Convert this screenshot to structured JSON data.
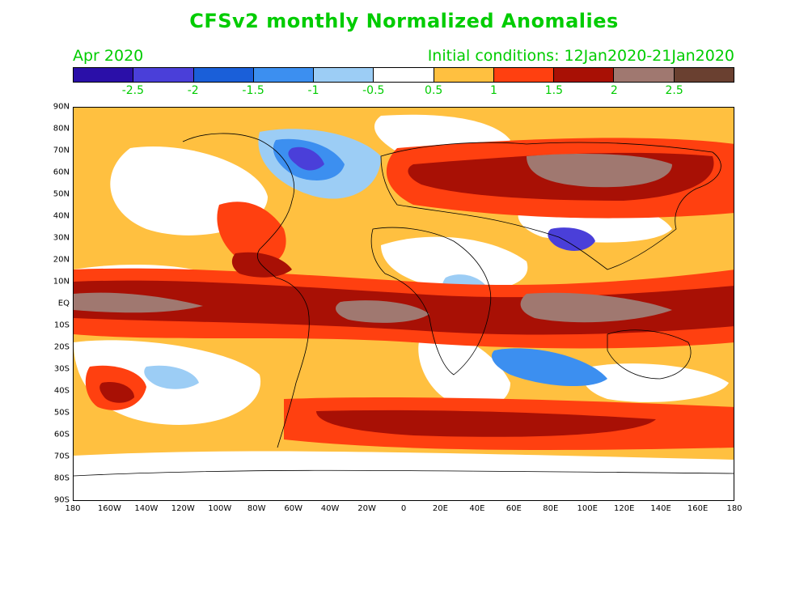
{
  "title": "CFSv2 monthly Normalized Anomalies",
  "subtitle": {
    "month": "Apr 2020",
    "initial_conditions": "Initial conditions: 12Jan2020-21Jan2020"
  },
  "colorbar": {
    "colors": [
      "#2a0fa8",
      "#4a3fd9",
      "#1a5fd9",
      "#3c8ff0",
      "#9ccdf5",
      "#ffffff",
      "#ffc040",
      "#ff4010",
      "#a81005",
      "#a07870",
      "#6a4030"
    ],
    "labels": [
      "-2.5",
      "-2",
      "-1.5",
      "-1",
      "-0.5",
      "0.5",
      "1",
      "1.5",
      "2",
      "2.5"
    ]
  },
  "axes": {
    "lat_labels": [
      "90N",
      "80N",
      "70N",
      "60N",
      "50N",
      "40N",
      "30N",
      "20N",
      "10N",
      "EQ",
      "10S",
      "20S",
      "30S",
      "40S",
      "50S",
      "60S",
      "70S",
      "80S",
      "90S"
    ],
    "lon_labels": [
      "180",
      "160W",
      "140W",
      "120W",
      "100W",
      "80W",
      "60W",
      "40W",
      "20W",
      "0",
      "20E",
      "40E",
      "60E",
      "80E",
      "100E",
      "120E",
      "140E",
      "160E",
      "180"
    ]
  }
}
